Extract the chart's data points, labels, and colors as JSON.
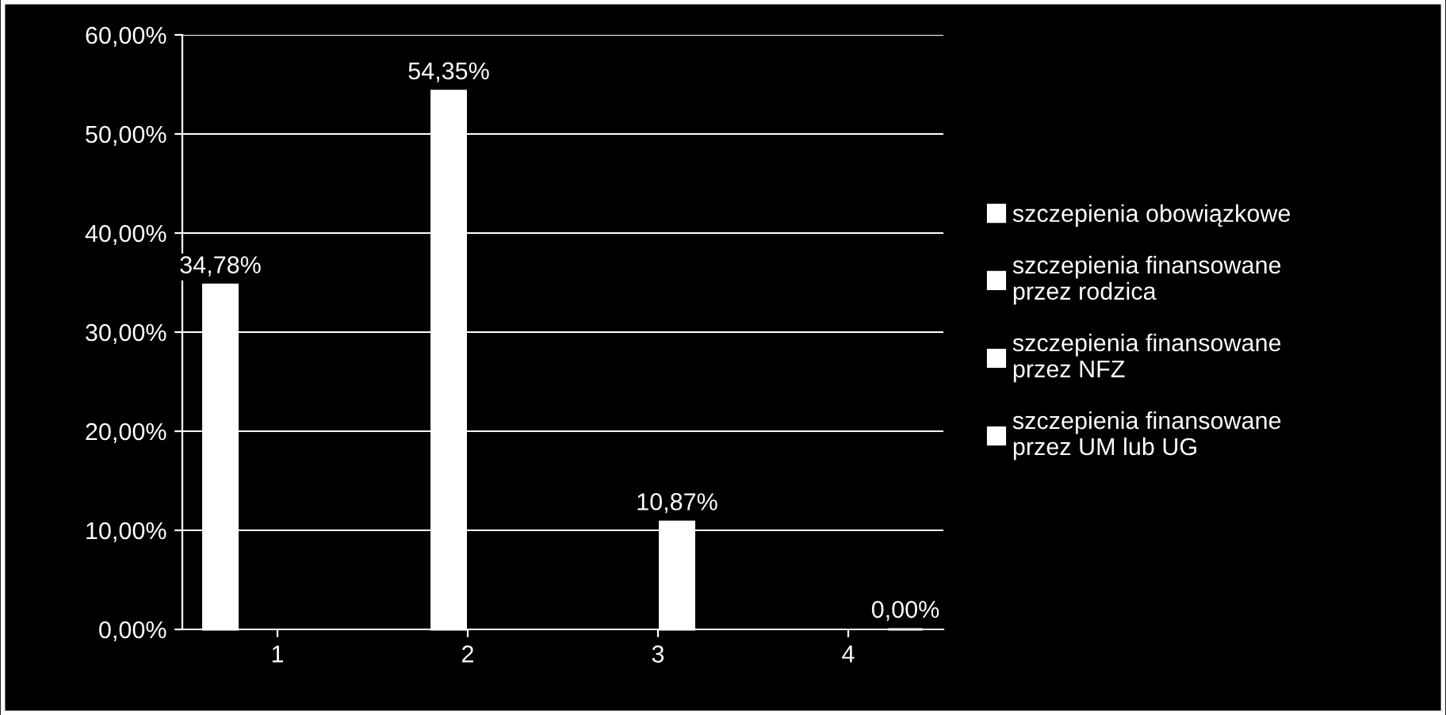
{
  "chart_data": {
    "type": "bar",
    "categories": [
      "1",
      "2",
      "3",
      "4"
    ],
    "series": [
      {
        "name": "szczepienia obowiązkowe",
        "color": "#ffffff",
        "values": [
          34.78,
          null,
          null,
          null
        ],
        "value_labels": [
          "34,78%",
          null,
          null,
          null
        ]
      },
      {
        "name": "szczepienia finansowane przez rodzica",
        "color": "#ffffff",
        "values": [
          null,
          54.35,
          null,
          null
        ],
        "value_labels": [
          null,
          "54,35%",
          null,
          null
        ]
      },
      {
        "name": "szczepienia finansowane przez NFZ",
        "color": "#ffffff",
        "values": [
          null,
          null,
          10.87,
          null
        ],
        "value_labels": [
          null,
          null,
          "10,87%",
          null
        ]
      },
      {
        "name": "szczepienia finansowane przez UM lub UG",
        "color": "#ffffff",
        "values": [
          null,
          null,
          null,
          0
        ],
        "value_labels": [
          null,
          null,
          null,
          "0,00%"
        ]
      }
    ],
    "ylim": [
      0,
      60
    ],
    "yticks": [
      {
        "value": 0,
        "label": "0,00%"
      },
      {
        "value": 10,
        "label": "10,00%"
      },
      {
        "value": 20,
        "label": "20,00%"
      },
      {
        "value": 30,
        "label": "30,00%"
      },
      {
        "value": 40,
        "label": "40,00%"
      },
      {
        "value": 50,
        "label": "50,00%"
      },
      {
        "value": 60,
        "label": "60,00%"
      }
    ],
    "grid": "y",
    "legend": "right"
  }
}
